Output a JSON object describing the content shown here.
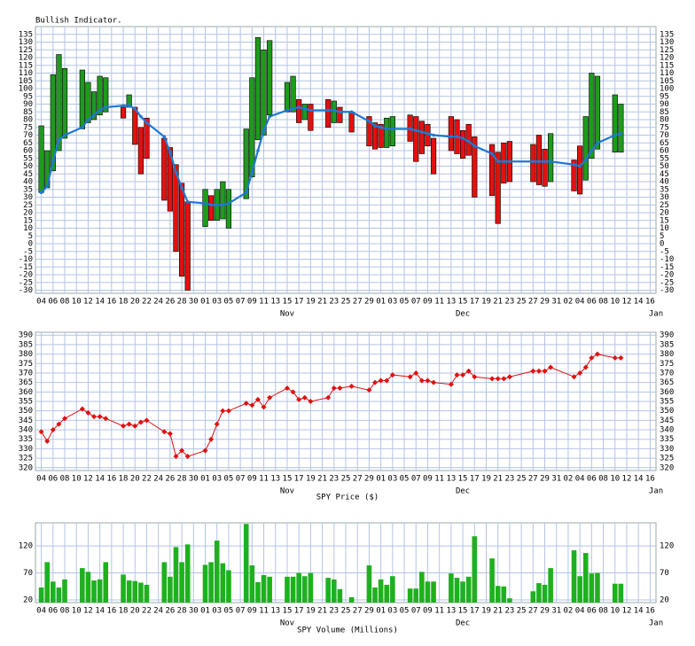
{
  "chart_data": [
    {
      "type": "candlestick",
      "title": "Bullish Indicator.",
      "x": [
        "Oct 04",
        "Oct 05",
        "Oct 06",
        "Oct 07",
        "Oct 08",
        "Oct 11",
        "Oct 12",
        "Oct 13",
        "Oct 14",
        "Oct 15",
        "Oct 18",
        "Oct 19",
        "Oct 20",
        "Oct 21",
        "Oct 22",
        "Oct 25",
        "Oct 26",
        "Oct 27",
        "Oct 28",
        "Oct 29",
        "Nov 01",
        "Nov 02",
        "Nov 03",
        "Nov 04",
        "Nov 05",
        "Nov 08",
        "Nov 09",
        "Nov 10",
        "Nov 11",
        "Nov 12",
        "Nov 15",
        "Nov 16",
        "Nov 17",
        "Nov 18",
        "Nov 19",
        "Nov 22",
        "Nov 23",
        "Nov 24",
        "Nov 26",
        "Nov 29",
        "Nov 30",
        "Dec 01",
        "Dec 02",
        "Dec 03",
        "Dec 06",
        "Dec 07",
        "Dec 08",
        "Dec 09",
        "Dec 10",
        "Dec 13",
        "Dec 14",
        "Dec 15",
        "Dec 16",
        "Dec 17",
        "Dec 20",
        "Dec 21",
        "Dec 22",
        "Dec 23",
        "Dec 27",
        "Dec 28",
        "Dec 29",
        "Dec 30",
        "Jan 03",
        "Jan 04",
        "Jan 05",
        "Jan 06",
        "Jan 07",
        "Jan 10",
        "Jan 11"
      ],
      "open": [
        33,
        36,
        47,
        60,
        68,
        74,
        78,
        80,
        83,
        85,
        88,
        88,
        88,
        75,
        81,
        68,
        62,
        51,
        39,
        27,
        11,
        31,
        15,
        16,
        10,
        29,
        43,
        67,
        70,
        83,
        85,
        85,
        93,
        80,
        90,
        93,
        78,
        88,
        85,
        82,
        78,
        77,
        62,
        63,
        83,
        82,
        79,
        77,
        68,
        82,
        80,
        73,
        77,
        69,
        64,
        59,
        65,
        66,
        64,
        70,
        61,
        40,
        54,
        63,
        41,
        55,
        61,
        59,
        59
      ],
      "close": [
        76,
        60,
        109,
        122,
        113,
        112,
        104,
        98,
        108,
        107,
        81,
        96,
        64,
        45,
        55,
        28,
        21,
        -5,
        -21,
        -30,
        35,
        15,
        35,
        40,
        35,
        74,
        107,
        133,
        125,
        131,
        104,
        108,
        78,
        90,
        73,
        75,
        92,
        78,
        72,
        63,
        61,
        62,
        81,
        82,
        66,
        53,
        58,
        63,
        45,
        60,
        58,
        55,
        57,
        30,
        31,
        13,
        39,
        40,
        40,
        38,
        37,
        71,
        34,
        32,
        82,
        110,
        108,
        96,
        90
      ],
      "ma": [
        33,
        37,
        53,
        67,
        70,
        75,
        80,
        83,
        86,
        88,
        89,
        89,
        87,
        82,
        78,
        69,
        59,
        46,
        36,
        27,
        26,
        25,
        25,
        25,
        26,
        33,
        46,
        60,
        73,
        82,
        86,
        87,
        88,
        87,
        86,
        86,
        86,
        85,
        85,
        79,
        76,
        75,
        74,
        74,
        74,
        73,
        72,
        71,
        70,
        69,
        69,
        68,
        66,
        63,
        58,
        53,
        53,
        53,
        53,
        53,
        53,
        53,
        51,
        50,
        54,
        60,
        65,
        70,
        71
      ],
      "up_color": "#1f9a1f",
      "down_color": "#e31010",
      "ma_color": "#1f78d2",
      "xlim": [
        "Oct 03",
        "Jan 17"
      ],
      "xticks": [
        {
          "value": "Oct 04",
          "label": "04"
        },
        {
          "value": "Oct 06",
          "label": "06"
        },
        {
          "value": "Oct 08",
          "label": "08"
        },
        {
          "value": "Oct 10",
          "label": "10"
        },
        {
          "value": "Oct 12",
          "label": "12"
        },
        {
          "value": "Oct 14",
          "label": "14"
        },
        {
          "value": "Oct 16",
          "label": "16"
        },
        {
          "value": "Oct 18",
          "label": "18"
        },
        {
          "value": "Oct 20",
          "label": "20"
        },
        {
          "value": "Oct 22",
          "label": "22"
        },
        {
          "value": "Oct 24",
          "label": "24"
        },
        {
          "value": "Oct 26",
          "label": "26"
        },
        {
          "value": "Oct 28",
          "label": "28"
        },
        {
          "value": "Oct 30",
          "label": "30"
        },
        {
          "value": "Nov 01",
          "label": "01"
        },
        {
          "value": "Nov 03",
          "label": "03"
        },
        {
          "value": "Nov 05",
          "label": "05"
        },
        {
          "value": "Nov 07",
          "label": "07"
        },
        {
          "value": "Nov 09",
          "label": "09"
        },
        {
          "value": "Nov 11",
          "label": "11"
        },
        {
          "value": "Nov 13",
          "label": "13"
        },
        {
          "value": "Nov 15",
          "label": "15"
        },
        {
          "value": "Nov 17",
          "label": "17"
        },
        {
          "value": "Nov 19",
          "label": "19"
        },
        {
          "value": "Nov 21",
          "label": "21"
        },
        {
          "value": "Nov 23",
          "label": "23"
        },
        {
          "value": "Nov 25",
          "label": "25"
        },
        {
          "value": "Nov 27",
          "label": "27"
        },
        {
          "value": "Nov 29",
          "label": "29"
        },
        {
          "value": "Dec 01",
          "label": "01"
        },
        {
          "value": "Dec 03",
          "label": "03"
        },
        {
          "value": "Dec 05",
          "label": "05"
        },
        {
          "value": "Dec 07",
          "label": "07"
        },
        {
          "value": "Dec 09",
          "label": "09"
        },
        {
          "value": "Dec 11",
          "label": "11"
        },
        {
          "value": "Dec 13",
          "label": "13"
        },
        {
          "value": "Dec 15",
          "label": "15"
        },
        {
          "value": "Dec 17",
          "label": "17"
        },
        {
          "value": "Dec 19",
          "label": "19"
        },
        {
          "value": "Dec 21",
          "label": "21"
        },
        {
          "value": "Dec 23",
          "label": "23"
        },
        {
          "value": "Dec 25",
          "label": "25"
        },
        {
          "value": "Dec 27",
          "label": "27"
        },
        {
          "value": "Dec 29",
          "label": "29"
        },
        {
          "value": "Dec 31",
          "label": "31"
        },
        {
          "value": "Jan 02",
          "label": "02"
        },
        {
          "value": "Jan 04",
          "label": "04"
        },
        {
          "value": "Jan 06",
          "label": "06"
        },
        {
          "value": "Jan 08",
          "label": "08"
        },
        {
          "value": "Jan 10",
          "label": "10"
        },
        {
          "value": "Jan 12",
          "label": "12"
        },
        {
          "value": "Jan 14",
          "label": "14"
        },
        {
          "value": "Jan 16",
          "label": "16"
        }
      ],
      "month_ticks": [
        {
          "value": "Nov 15",
          "label": "Nov"
        },
        {
          "value": "Dec 15",
          "label": "Dec"
        },
        {
          "value": "Jan 17",
          "label": "Jan"
        }
      ],
      "ylim": [
        -32,
        140
      ],
      "yticks": [
        -30,
        -25,
        -20,
        -15,
        -10,
        -5,
        0,
        5,
        10,
        15,
        20,
        25,
        30,
        35,
        40,
        45,
        50,
        55,
        60,
        65,
        70,
        75,
        80,
        85,
        90,
        95,
        100,
        105,
        110,
        115,
        120,
        125,
        130,
        135
      ],
      "grid": true
    },
    {
      "type": "line",
      "title": "SPY Price ($)",
      "color": "#e01010",
      "values": [
        339,
        334,
        340,
        343,
        346,
        351,
        349,
        347,
        347,
        346,
        342,
        343,
        342,
        344,
        345,
        339,
        338,
        326,
        329,
        326,
        329,
        335,
        343,
        350,
        350,
        354,
        353,
        356,
        352,
        357,
        362,
        360,
        356,
        357,
        355,
        357,
        362,
        362,
        363,
        361,
        365,
        366,
        366,
        369,
        368,
        370,
        366,
        366,
        365,
        364,
        369,
        369,
        371,
        368,
        367,
        367,
        367,
        368,
        371,
        371,
        371,
        373,
        368,
        370,
        373,
        378,
        380,
        378,
        378
      ],
      "ylim": [
        318.5,
        391.5
      ],
      "yticks": [
        320,
        325,
        330,
        335,
        340,
        345,
        350,
        355,
        360,
        365,
        370,
        375,
        380,
        385,
        390
      ],
      "grid": true
    },
    {
      "type": "bar",
      "title": "SPY Volume (Millions)",
      "color": "#1fb01f",
      "values": [
        43,
        90,
        54,
        43,
        58,
        79,
        72,
        56,
        58,
        90,
        67,
        56,
        55,
        52,
        48,
        90,
        63,
        118,
        90,
        123,
        85,
        90,
        130,
        88,
        75,
        161,
        84,
        53,
        66,
        63,
        63,
        63,
        70,
        64,
        70,
        61,
        58,
        40,
        25,
        84,
        43,
        58,
        48,
        64,
        41,
        41,
        72,
        54,
        54,
        69,
        61,
        54,
        63,
        138,
        97,
        46,
        45,
        23,
        36,
        51,
        48,
        79,
        112,
        64,
        107,
        69,
        70,
        50,
        50
      ],
      "ylim": [
        15,
        163
      ],
      "yticks": [
        20,
        70,
        120
      ],
      "grid": true
    }
  ]
}
